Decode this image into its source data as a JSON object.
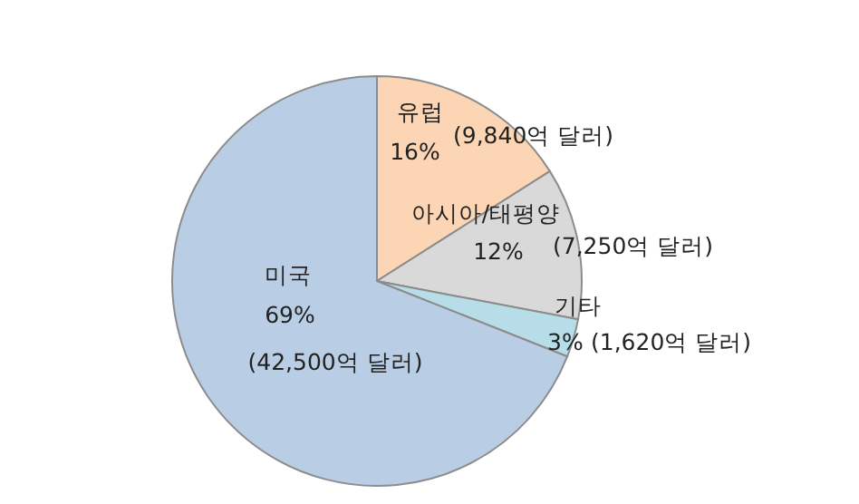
{
  "chart_data": {
    "type": "pie",
    "categories": [
      "유럽",
      "아시아/태평양",
      "기타",
      "미국"
    ],
    "values": [
      16,
      12,
      3,
      69
    ],
    "colors": [
      "#fcd5b5",
      "#d9d9d9",
      "#b7dee8",
      "#b9cde5"
    ],
    "value_labels": [
      "16%",
      "12%",
      "3%",
      "69%"
    ],
    "annotations": [
      {
        "text": "(9,840억 달러)",
        "x": "유럽"
      },
      {
        "text": "(7,250억 달러)",
        "x": "아시아/태평양"
      },
      {
        "text": "(1,620억 달러)",
        "x": "기타"
      },
      {
        "text": "(42,500억 달러)",
        "x": "미국"
      }
    ],
    "legend": false
  }
}
